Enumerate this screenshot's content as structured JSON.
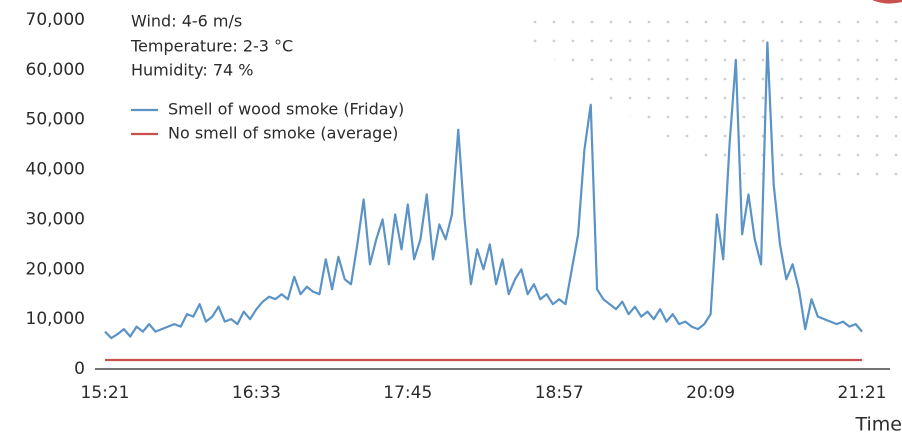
{
  "chart_data": {
    "type": "line",
    "annotations": [
      "Wind: 4-6 m/s",
      "Temperature: 2-3 °C",
      "Humidity: 74 %"
    ],
    "x_label": "Time",
    "legend": "top-left",
    "xlim": [
      "15:21",
      "21:21"
    ],
    "xticks": [
      "15:21",
      "16:33",
      "17:45",
      "18:57",
      "20:09",
      "21:21"
    ],
    "ylim": [
      0,
      70000
    ],
    "yticks": [
      0,
      {
        "value": 10000,
        "label": "10,000"
      },
      {
        "value": 20000,
        "label": "20,000"
      },
      {
        "value": 30000,
        "label": "30,000"
      },
      {
        "value": 40000,
        "label": "40,000"
      },
      {
        "value": 50000,
        "label": "50,000"
      },
      {
        "value": 60000,
        "label": "60,000"
      },
      {
        "value": 70000,
        "label": "70,000"
      }
    ],
    "grid": false,
    "series": [
      {
        "name": "Smell of wood smoke (Friday)",
        "color": "#5b93c7",
        "x": [
          "15:21",
          "15:24",
          "15:27",
          "15:30",
          "15:33",
          "15:36",
          "15:39",
          "15:42",
          "15:45",
          "15:48",
          "15:51",
          "15:54",
          "15:57",
          "16:00",
          "16:03",
          "16:06",
          "16:09",
          "16:12",
          "16:15",
          "16:18",
          "16:21",
          "16:24",
          "16:27",
          "16:30",
          "16:33",
          "16:36",
          "16:39",
          "16:42",
          "16:45",
          "16:48",
          "16:51",
          "16:54",
          "16:57",
          "17:00",
          "17:03",
          "17:06",
          "17:09",
          "17:12",
          "17:15",
          "17:18",
          "17:21",
          "17:24",
          "17:27",
          "17:30",
          "17:33",
          "17:36",
          "17:39",
          "17:42",
          "17:45",
          "17:48",
          "17:51",
          "17:54",
          "17:57",
          "18:00",
          "18:03",
          "18:06",
          "18:09",
          "18:12",
          "18:15",
          "18:18",
          "18:21",
          "18:24",
          "18:27",
          "18:30",
          "18:33",
          "18:36",
          "18:39",
          "18:42",
          "18:45",
          "18:48",
          "18:51",
          "18:54",
          "18:57",
          "19:00",
          "19:03",
          "19:06",
          "19:09",
          "19:12",
          "19:15",
          "19:18",
          "19:21",
          "19:24",
          "19:27",
          "19:30",
          "19:33",
          "19:36",
          "19:39",
          "19:42",
          "19:45",
          "19:48",
          "19:51",
          "19:54",
          "19:57",
          "20:00",
          "20:03",
          "20:06",
          "20:09",
          "20:12",
          "20:15",
          "20:18",
          "20:21",
          "20:24",
          "20:27",
          "20:30",
          "20:33",
          "20:36",
          "20:39",
          "20:42",
          "20:45",
          "20:48",
          "20:51",
          "20:54",
          "20:57",
          "21:00",
          "21:03",
          "21:06",
          "21:09",
          "21:12",
          "21:15",
          "21:18",
          "21:21"
        ],
        "values": [
          7500,
          6200,
          7000,
          8000,
          6500,
          8500,
          7500,
          9000,
          7500,
          8000,
          8500,
          9000,
          8500,
          11000,
          10500,
          13000,
          9500,
          10500,
          12500,
          9500,
          10000,
          9000,
          11500,
          10000,
          12000,
          13500,
          14500,
          14000,
          15000,
          14000,
          18500,
          15000,
          16500,
          15500,
          15000,
          22000,
          16000,
          22500,
          18000,
          17000,
          25000,
          34000,
          21000,
          26000,
          30000,
          21000,
          31000,
          24000,
          33000,
          22000,
          26000,
          35000,
          22000,
          29000,
          26000,
          31000,
          48000,
          30000,
          17000,
          24000,
          20000,
          25000,
          17000,
          22000,
          15000,
          18000,
          20000,
          15000,
          17000,
          14000,
          15000,
          13000,
          14000,
          13000,
          20000,
          27000,
          44000,
          53000,
          16000,
          14000,
          13000,
          12000,
          13500,
          11000,
          12500,
          10500,
          11500,
          10000,
          12000,
          9500,
          11000,
          9000,
          9500,
          8500,
          8000,
          9000,
          11000,
          31000,
          22000,
          45000,
          62000,
          27000,
          35000,
          26000,
          21000,
          65500,
          37000,
          25000,
          18000,
          21000,
          16000,
          8000,
          14000,
          10500,
          10000,
          9500,
          9000,
          9500,
          8500,
          9000,
          7500
        ]
      },
      {
        "name": "No smell of smoke (average)",
        "color": "#c9504f",
        "x": [
          "15:21",
          "21:21"
        ],
        "values": [
          1800,
          1800
        ]
      }
    ]
  }
}
